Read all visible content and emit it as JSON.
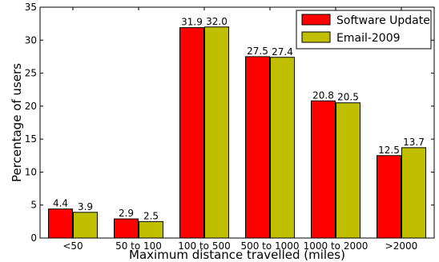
{
  "chart_data": {
    "type": "bar",
    "categories": [
      "<50",
      "50 to 100",
      "100 to 500",
      "500 to 1000",
      "1000 to 2000",
      ">2000"
    ],
    "series": [
      {
        "name": "Software Update",
        "values": [
          4.4,
          2.9,
          31.9,
          27.5,
          20.8,
          12.5
        ],
        "labels": [
          "4.4",
          "2.9",
          "31.9",
          "27.5",
          "20.8",
          "12.5"
        ],
        "color": "#ff0000"
      },
      {
        "name": "Email-2009",
        "values": [
          3.9,
          2.5,
          32.0,
          27.4,
          20.5,
          13.7
        ],
        "labels": [
          "3.9",
          "2.5",
          "32.0",
          "27.4",
          "20.5",
          "13.7"
        ],
        "color": "#bfbf00"
      }
    ],
    "xlabel": "Maximum distance travelled (miles)",
    "ylabel": "Percentage of users",
    "ylim": [
      0,
      35
    ],
    "yticks": [
      0,
      5,
      10,
      15,
      20,
      25,
      30,
      35
    ],
    "grid": false,
    "legend_position": "top-right"
  }
}
